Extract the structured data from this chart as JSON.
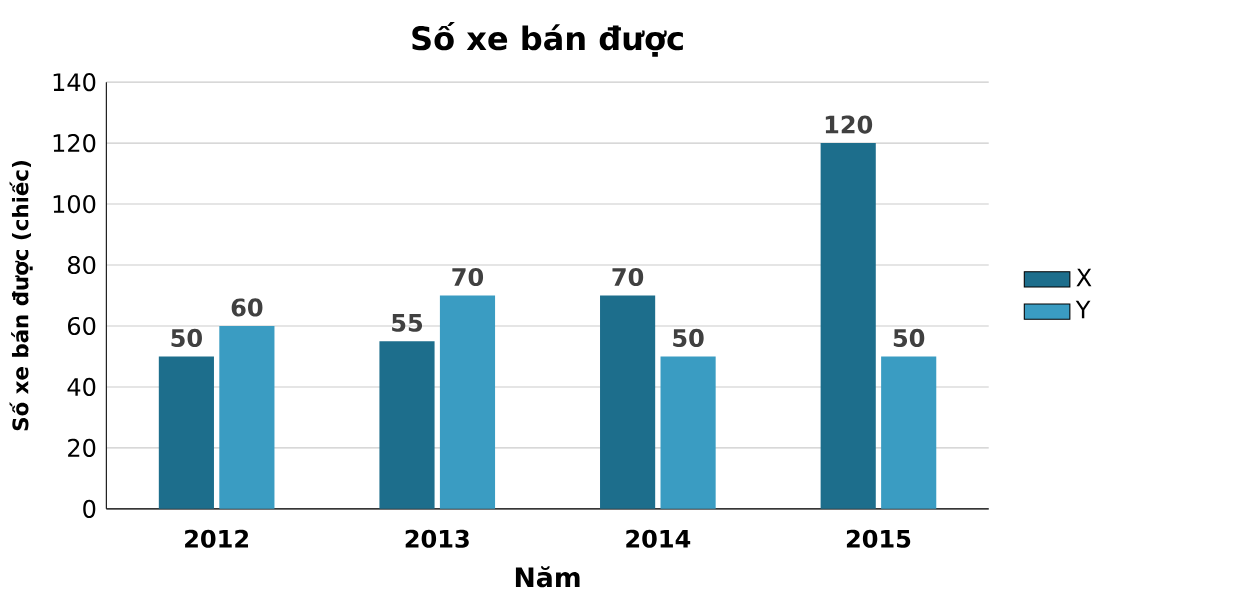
{
  "chart_data": {
    "type": "bar",
    "title": "Số xe bán được",
    "xlabel": "Năm",
    "ylabel": "Số xe bán được (chiếc)",
    "categories": [
      "2012",
      "2013",
      "2014",
      "2015"
    ],
    "series": [
      {
        "name": "X",
        "color": "#1d6e8c",
        "values": [
          50,
          55,
          70,
          120
        ]
      },
      {
        "name": "Y",
        "color": "#3a9cc2",
        "values": [
          60,
          70,
          50,
          50
        ]
      }
    ],
    "ylim": [
      0,
      140
    ],
    "yticks": [
      0,
      20,
      40,
      60,
      80,
      100,
      120,
      140
    ],
    "grid": "y",
    "legend": "right",
    "data_labels": true
  }
}
